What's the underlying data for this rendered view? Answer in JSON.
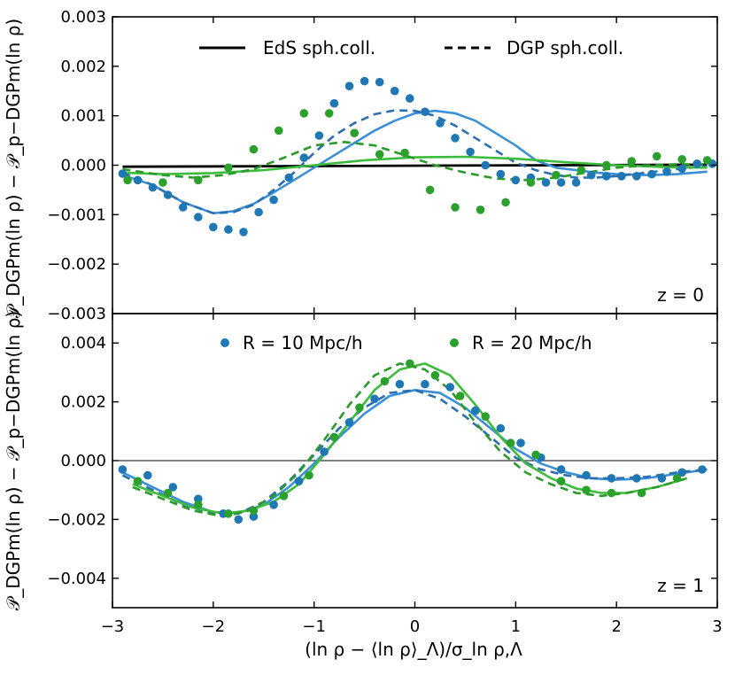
{
  "chart_data": [
    {
      "type": "line",
      "panel": "top",
      "annotation": "z = 0",
      "xlim": [
        -3,
        3
      ],
      "ylim": [
        -0.003,
        0.003
      ],
      "xticks": [
        -3,
        -2,
        -1,
        0,
        1,
        2,
        3
      ],
      "yticks": [
        -0.003,
        -0.002,
        -0.001,
        0.0,
        0.001,
        0.002,
        0.003
      ],
      "ytick_labels": [
        "−0.003",
        "−0.002",
        "−0.001",
        "0.000",
        "0.001",
        "0.002",
        "0.003"
      ],
      "ylabel": "𝒫_DGPm(ln ρ) − 𝒫_p−DGPm(ln ρ)",
      "legend": [
        {
          "label": "EdS sph.coll.",
          "style": "solid"
        },
        {
          "label": "DGP sph.coll.",
          "style": "dashed"
        }
      ],
      "series": [
        {
          "name": "EdS reference",
          "kind": "line",
          "style": "solid",
          "color": "#000000",
          "x": [
            -2.9,
            2.9
          ],
          "y": [
            -3e-05,
            1e-05
          ]
        },
        {
          "name": "R = 10 Mpc/h EdS",
          "kind": "line",
          "style": "solid",
          "color": "#3b8fd6",
          "x": [
            -2.9,
            -2.6,
            -2.3,
            -2.0,
            -1.8,
            -1.6,
            -1.4,
            -1.2,
            -1.0,
            -0.8,
            -0.6,
            -0.4,
            -0.2,
            0.0,
            0.2,
            0.4,
            0.6,
            0.8,
            1.0,
            1.2,
            1.4,
            1.6,
            1.8,
            2.0,
            2.3,
            2.6,
            2.9
          ],
          "y": [
            -0.0002,
            -0.0004,
            -0.00075,
            -0.00097,
            -0.00093,
            -0.00078,
            -0.00055,
            -0.0003,
            -5e-05,
            0.0002,
            0.00045,
            0.0007,
            0.0009,
            0.00105,
            0.0011,
            0.00105,
            0.0009,
            0.00065,
            0.0004,
            0.0001,
            -5e-05,
            -0.0001,
            -0.00015,
            -0.00018,
            -0.0002,
            -0.00018,
            -0.00013
          ]
        },
        {
          "name": "R = 10 Mpc/h DGP",
          "kind": "line",
          "style": "dashed",
          "color": "#2b6faf",
          "x": [
            -2.9,
            -2.6,
            -2.3,
            -2.0,
            -1.8,
            -1.6,
            -1.4,
            -1.2,
            -1.0,
            -0.8,
            -0.6,
            -0.4,
            -0.2,
            0.0,
            0.2,
            0.4,
            0.6,
            0.8,
            1.0,
            1.2,
            1.4,
            1.6,
            1.8,
            2.0,
            2.3,
            2.6,
            2.9
          ],
          "y": [
            -0.00015,
            -0.0004,
            -0.00075,
            -0.00097,
            -0.00095,
            -0.0008,
            -0.0005,
            -0.00015,
            0.00025,
            0.0006,
            0.00085,
            0.00103,
            0.00111,
            0.0011,
            0.001,
            0.0008,
            0.00055,
            0.0003,
            5e-05,
            -0.0001,
            -0.0002,
            -0.00025,
            -0.00025,
            -0.00022,
            -0.00015,
            -8e-05,
            -2e-05
          ]
        },
        {
          "name": "R = 20 Mpc/h EdS",
          "kind": "line",
          "style": "solid",
          "color": "#3dbb3d",
          "x": [
            -2.9,
            -2.5,
            -2.0,
            -1.5,
            -1.0,
            -0.5,
            0.0,
            0.5,
            1.0,
            1.5,
            2.0,
            2.5,
            2.9
          ],
          "y": [
            -0.00015,
            -0.00018,
            -0.00016,
            -0.0001,
            0.0,
            0.0001,
            0.00016,
            0.00017,
            0.00013,
            6e-05,
            0.0,
            -4e-05,
            -5e-05
          ]
        },
        {
          "name": "R = 20 Mpc/h DGP",
          "kind": "line",
          "style": "dashed",
          "color": "#2a9a2a",
          "x": [
            -2.9,
            -2.5,
            -2.2,
            -1.9,
            -1.6,
            -1.3,
            -1.0,
            -0.7,
            -0.4,
            -0.1,
            0.2,
            0.5,
            0.8,
            1.1,
            1.4,
            1.7,
            2.0,
            2.3,
            2.6,
            2.9
          ],
          "y": [
            -8e-05,
            -0.0002,
            -0.00025,
            -0.0002,
            -8e-05,
            0.00015,
            0.0004,
            0.00047,
            0.0004,
            0.0002,
            0.0,
            -0.00015,
            -0.00027,
            -0.0003,
            -0.00025,
            -0.00015,
            -5e-05,
            0.0,
            2e-05,
            2e-05
          ]
        },
        {
          "name": "R = 10 Mpc/h",
          "kind": "scatter",
          "color": "#1f77b4",
          "x": [
            -2.9,
            -2.75,
            -2.6,
            -2.45,
            -2.3,
            -2.15,
            -2.0,
            -1.85,
            -1.7,
            -1.55,
            -1.4,
            -1.25,
            -1.1,
            -0.95,
            -0.8,
            -0.65,
            -0.5,
            -0.35,
            -0.2,
            -0.05,
            0.1,
            0.25,
            0.4,
            0.55,
            0.7,
            0.85,
            1.0,
            1.15,
            1.3,
            1.45,
            1.6,
            1.75,
            1.9,
            2.05,
            2.2,
            2.35,
            2.5,
            2.65,
            2.8,
            2.95
          ],
          "y": [
            -0.00017,
            -0.0003,
            -0.00045,
            -0.0006,
            -0.00085,
            -0.00105,
            -0.00125,
            -0.0013,
            -0.00135,
            -0.00095,
            -0.0007,
            -0.00025,
            0.00015,
            0.0006,
            0.00125,
            0.0016,
            0.0017,
            0.00168,
            0.0015,
            0.00135,
            0.00108,
            0.00085,
            0.00055,
            0.00027,
            0.0,
            -0.00018,
            -0.0003,
            -0.00025,
            -0.00035,
            -0.00035,
            -0.00035,
            -0.0002,
            -0.00022,
            -0.00022,
            -0.00022,
            -0.00018,
            -0.00013,
            -7e-05,
            3e-05,
            3e-05
          ]
        },
        {
          "name": "R = 20 Mpc/h",
          "kind": "scatter",
          "color": "#2ca02c",
          "x": [
            -2.85,
            -2.5,
            -2.15,
            -1.85,
            -1.6,
            -1.35,
            -1.1,
            -0.85,
            -0.6,
            -0.35,
            -0.1,
            0.15,
            0.4,
            0.65,
            0.9,
            1.15,
            1.4,
            1.65,
            1.9,
            2.15,
            2.4,
            2.65,
            2.9
          ],
          "y": [
            -0.0003,
            -0.00035,
            -0.0003,
            -5e-05,
            0.00032,
            0.0007,
            0.00105,
            0.00105,
            0.00065,
            0.00022,
            0.00025,
            -0.0005,
            -0.00085,
            -0.0009,
            -0.00075,
            -0.00035,
            -0.0002,
            -0.0001,
            0.0,
            8e-05,
            0.00018,
            0.00012,
            0.0001
          ]
        }
      ]
    },
    {
      "type": "line",
      "panel": "bottom",
      "annotation": "z = 1",
      "xlim": [
        -3,
        3
      ],
      "ylim": [
        -0.005,
        0.005
      ],
      "xticks": [
        -3,
        -2,
        -1,
        0,
        1,
        2,
        3
      ],
      "xtick_labels": [
        "−3",
        "−2",
        "−1",
        "0",
        "1",
        "2",
        "3"
      ],
      "yticks": [
        -0.004,
        -0.002,
        0.0,
        0.002,
        0.004
      ],
      "ytick_labels": [
        "−0.004",
        "−0.002",
        "0.000",
        "0.002",
        "0.004"
      ],
      "xlabel": "(ln ρ − ⟨ln ρ⟩_Λ)/σ_ln ρ,Λ",
      "ylabel": "𝒫_DGPm(ln ρ) − 𝒫_p−DGPm(ln ρ)",
      "legend": [
        {
          "label": "R = 10 Mpc/h",
          "color": "#1f77b4"
        },
        {
          "label": "R = 20 Mpc/h",
          "color": "#2ca02c"
        }
      ],
      "series": [
        {
          "name": "R = 10 Mpc/h EdS",
          "kind": "line",
          "style": "solid",
          "color": "#3b8fd6",
          "x": [
            -2.9,
            -2.6,
            -2.3,
            -2.0,
            -1.75,
            -1.5,
            -1.25,
            -1.0,
            -0.75,
            -0.5,
            -0.25,
            0.0,
            0.25,
            0.5,
            0.75,
            1.0,
            1.25,
            1.5,
            1.75,
            2.0,
            2.3,
            2.6,
            2.9
          ],
          "y": [
            -0.0004,
            -0.0009,
            -0.0014,
            -0.00175,
            -0.00178,
            -0.0015,
            -0.0009,
            -0.0001,
            0.0008,
            0.0016,
            0.0022,
            0.0024,
            0.0023,
            0.0018,
            0.0011,
            0.0004,
            -0.0001,
            -0.0004,
            -0.0006,
            -0.00065,
            -0.0006,
            -0.00045,
            -0.0003
          ]
        },
        {
          "name": "R = 10 Mpc/h DGP",
          "kind": "line",
          "style": "dashed",
          "color": "#2b6faf",
          "x": [
            -2.9,
            -2.6,
            -2.3,
            -2.0,
            -1.75,
            -1.5,
            -1.25,
            -1.0,
            -0.75,
            -0.5,
            -0.25,
            0.0,
            0.25,
            0.5,
            0.75,
            1.0,
            1.25,
            1.5,
            1.75,
            2.0,
            2.3,
            2.6,
            2.9
          ],
          "y": [
            -0.0005,
            -0.001,
            -0.0015,
            -0.0018,
            -0.0018,
            -0.0014,
            -0.0007,
            0.0002,
            0.0011,
            0.0018,
            0.0023,
            0.0024,
            0.0021,
            0.0015,
            0.0008,
            0.0001,
            -0.0003,
            -0.0005,
            -0.0006,
            -0.0006,
            -0.00055,
            -0.0004,
            -0.0003
          ]
        },
        {
          "name": "R = 20 Mpc/h EdS",
          "kind": "line",
          "style": "solid",
          "color": "#3dbb3d",
          "x": [
            -2.8,
            -2.5,
            -2.2,
            -1.9,
            -1.65,
            -1.4,
            -1.15,
            -0.9,
            -0.65,
            -0.4,
            -0.15,
            0.1,
            0.35,
            0.6,
            0.85,
            1.1,
            1.35,
            1.6,
            1.85,
            2.1,
            2.4,
            2.7
          ],
          "y": [
            -0.0008,
            -0.0012,
            -0.0016,
            -0.0018,
            -0.0017,
            -0.0014,
            -0.0008,
            0.0002,
            0.0013,
            0.0024,
            0.0031,
            0.0033,
            0.0029,
            0.0019,
            0.0008,
            -0.0001,
            -0.0006,
            -0.00095,
            -0.0011,
            -0.0011,
            -0.0009,
            -0.0006
          ]
        },
        {
          "name": "R = 20 Mpc/h DGP",
          "kind": "line",
          "style": "dashed",
          "color": "#2a9a2a",
          "x": [
            -2.8,
            -2.5,
            -2.2,
            -1.9,
            -1.65,
            -1.4,
            -1.15,
            -0.9,
            -0.65,
            -0.4,
            -0.15,
            0.1,
            0.35,
            0.6,
            0.85,
            1.1,
            1.35,
            1.6,
            1.85,
            2.1,
            2.4,
            2.7
          ],
          "y": [
            -0.0009,
            -0.0013,
            -0.0017,
            -0.0019,
            -0.0017,
            -0.0012,
            -0.0004,
            0.0007,
            0.0019,
            0.0029,
            0.0033,
            0.0031,
            0.0024,
            0.0013,
            0.0003,
            -0.0004,
            -0.0008,
            -0.0011,
            -0.0012,
            -0.0011,
            -0.0009,
            -0.0006
          ]
        },
        {
          "name": "R = 10 Mpc/h",
          "kind": "scatter",
          "color": "#1f77b4",
          "x": [
            -2.9,
            -2.65,
            -2.4,
            -2.15,
            -1.9,
            -1.75,
            -1.6,
            -1.4,
            -1.15,
            -0.9,
            -0.65,
            -0.4,
            -0.15,
            0.1,
            0.35,
            0.6,
            0.85,
            1.05,
            1.25,
            1.45,
            1.7,
            1.95,
            2.2,
            2.45,
            2.65,
            2.85
          ],
          "y": [
            -0.0003,
            -0.0005,
            -0.0009,
            -0.0013,
            -0.0018,
            -0.002,
            -0.0019,
            -0.0015,
            -0.0007,
            0.0003,
            0.0013,
            0.0021,
            0.0026,
            0.0026,
            0.0025,
            0.0017,
            0.0011,
            0.0006,
            0.0001,
            -0.0003,
            -0.0005,
            -0.0006,
            -0.0006,
            -0.0006,
            -0.0004,
            -0.0003
          ]
        },
        {
          "name": "R = 20 Mpc/h",
          "kind": "scatter",
          "color": "#2ca02c",
          "x": [
            -2.75,
            -2.45,
            -2.15,
            -1.85,
            -1.6,
            -1.3,
            -1.05,
            -0.8,
            -0.55,
            -0.3,
            -0.05,
            0.2,
            0.45,
            0.7,
            0.95,
            1.2,
            1.45,
            1.7,
            1.95,
            2.25,
            2.6
          ],
          "y": [
            -0.0007,
            -0.0011,
            -0.0015,
            -0.0018,
            -0.0017,
            -0.0012,
            -0.0005,
            0.0008,
            0.0018,
            0.0027,
            0.0033,
            0.0029,
            0.0022,
            0.0015,
            0.0006,
            0.0002,
            -0.0007,
            -0.001,
            -0.0011,
            -0.0011,
            -0.0006
          ]
        }
      ]
    }
  ]
}
